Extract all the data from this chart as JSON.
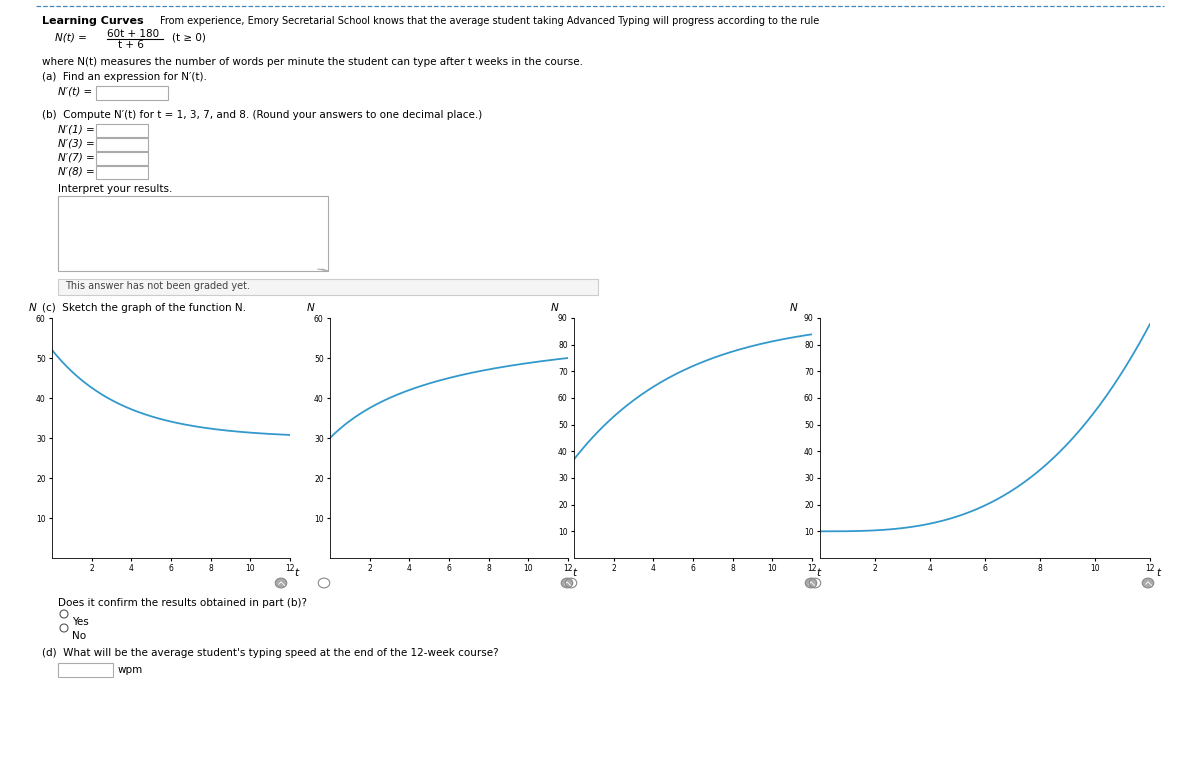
{
  "title": "Learning Curves",
  "subtitle": "From experience, Emory Secretarial School knows that the average student taking Advanced Typing will progress according to the rule",
  "where_text": "where N(t) measures the number of words per minute the student can type after t weeks in the course.",
  "part_a_label": "(a)  Find an expression for N′(t).",
  "part_b_label": "(b)  Compute N′(t) for t = 1, 3, 7, and 8. (Round your answers to one decimal place.)",
  "part_b_inputs": [
    "N′(1) =",
    "N′(3) =",
    "N′(7) =",
    "N′(8) ="
  ],
  "interpret_label": "Interpret your results.",
  "not_graded_text": "This answer has not been graded yet.",
  "part_c_label": "(c)  Sketch the graph of the function N.",
  "confirm_label": "Does it confirm the results obtained in part (b)?",
  "yes_label": "Yes",
  "no_label": "No",
  "part_d_label": "(d)  What will be the average student's typing speed at the end of the 12-week course?",
  "part_d_unit": "wpm",
  "background_color": "#ffffff",
  "border_color": "#4488bb",
  "curve_color": "#3399cc",
  "text_color": "#000000",
  "graph1": {
    "xlim": [
      0,
      12
    ],
    "ylim": [
      0,
      60
    ],
    "yticks": [
      10,
      20,
      30,
      40,
      50,
      60
    ],
    "xticks": [
      2,
      4,
      6,
      8,
      10,
      12
    ],
    "type": "decreasing"
  },
  "graph2": {
    "xlim": [
      0,
      12
    ],
    "ylim": [
      0,
      60
    ],
    "yticks": [
      10,
      20,
      30,
      40,
      50,
      60
    ],
    "xticks": [
      2,
      4,
      6,
      8,
      10,
      12
    ],
    "type": "increasing_concave_down"
  },
  "graph3": {
    "xlim": [
      0,
      12
    ],
    "ylim": [
      0,
      90
    ],
    "yticks": [
      10,
      20,
      30,
      40,
      50,
      60,
      70,
      80,
      90
    ],
    "xticks": [
      2,
      4,
      6,
      8,
      10,
      12
    ],
    "type": "increasing_concave_down_90"
  },
  "graph4": {
    "xlim": [
      0,
      12
    ],
    "ylim": [
      0,
      90
    ],
    "yticks": [
      10,
      20,
      30,
      40,
      50,
      60,
      70,
      80,
      90
    ],
    "xticks": [
      2,
      4,
      6,
      8,
      10,
      12
    ],
    "type": "steep_concave_up"
  }
}
